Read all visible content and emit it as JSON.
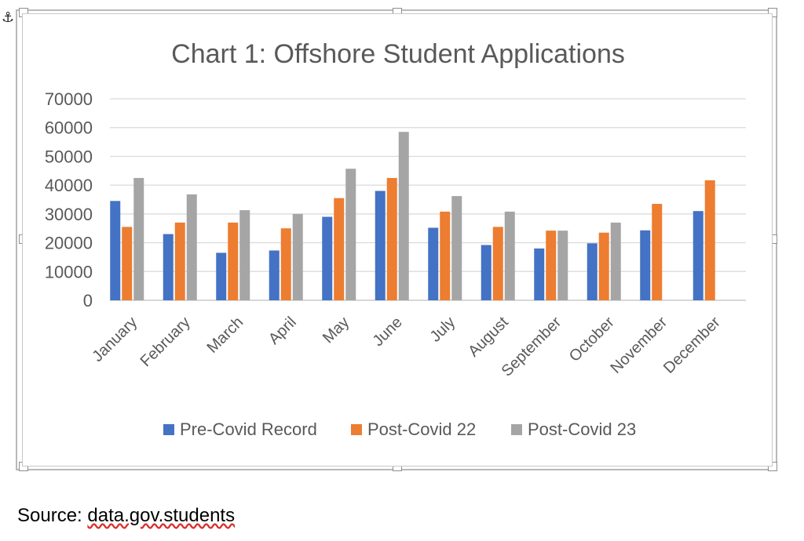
{
  "chart_data": {
    "type": "bar",
    "title": "Chart 1: Offshore Student Applications",
    "xlabel": "",
    "ylabel": "",
    "ylim": [
      0,
      70000
    ],
    "yticks": [
      0,
      10000,
      20000,
      30000,
      40000,
      50000,
      60000,
      70000
    ],
    "grid": true,
    "legend_position": "bottom",
    "categories": [
      "January",
      "February",
      "March",
      "April",
      "May",
      "June",
      "July",
      "August",
      "September",
      "October",
      "November",
      "December"
    ],
    "series": [
      {
        "name": "Pre-Covid Record",
        "color": "#4472c4",
        "values": [
          34500,
          23000,
          16500,
          17300,
          29000,
          38000,
          25200,
          19200,
          18000,
          19800,
          24300,
          31000
        ]
      },
      {
        "name": "Post-Covid 22",
        "color": "#ed7d31",
        "values": [
          25500,
          27000,
          27000,
          25000,
          35500,
          42500,
          30800,
          25500,
          24200,
          23500,
          33500,
          41700
        ]
      },
      {
        "name": "Post-Covid 23",
        "color": "#a5a5a5",
        "values": [
          42500,
          36800,
          31300,
          30000,
          45700,
          58500,
          36200,
          30800,
          24200,
          27000,
          null,
          null
        ]
      }
    ]
  },
  "source": {
    "prefix": "Source: ",
    "link_text": "data.gov.students"
  }
}
